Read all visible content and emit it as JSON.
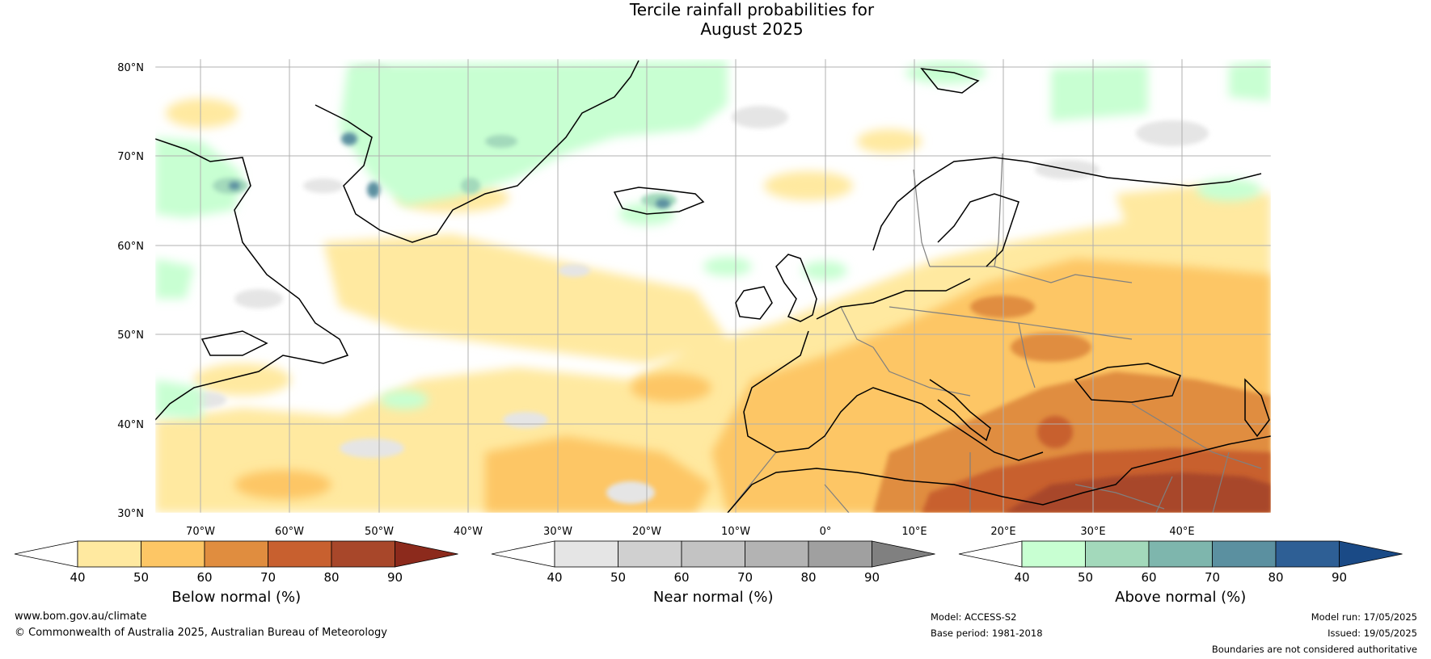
{
  "title": {
    "line1": "Tercile rainfall probabilities for",
    "line2": "August 2025"
  },
  "map": {
    "region": "North Atlantic and Europe",
    "lat_labels": [
      "80°N",
      "70°N",
      "60°N",
      "50°N",
      "40°N",
      "30°N"
    ],
    "lon_labels": [
      "70°W",
      "60°W",
      "50°W",
      "40°W",
      "30°W",
      "20°W",
      "10°W",
      "0°",
      "10°E",
      "20°E",
      "30°E",
      "40°E"
    ],
    "ocean_color": "#ffffff",
    "coastline_color": "#000000",
    "border_color": "#808080",
    "grid_color": "#b0b0b0"
  },
  "colorbars": [
    {
      "label": "Below normal (%)",
      "ticks": [
        "40",
        "50",
        "60",
        "70",
        "80",
        "90"
      ],
      "colors": [
        "#ffffff",
        "#ffe9a0",
        "#fdc665",
        "#e08d3f",
        "#c8602f",
        "#a8472a",
        "#8c2a1c"
      ]
    },
    {
      "label": "Near normal (%)",
      "ticks": [
        "40",
        "50",
        "60",
        "70",
        "80",
        "90"
      ],
      "colors": [
        "#ffffff",
        "#e5e5e5",
        "#d0d0d0",
        "#c3c3c3",
        "#b3b3b3",
        "#a0a0a0",
        "#808080"
      ]
    },
    {
      "label": "Above normal (%)",
      "ticks": [
        "40",
        "50",
        "60",
        "70",
        "80",
        "90"
      ],
      "colors": [
        "#ffffff",
        "#c8ffd2",
        "#a3d9bb",
        "#7eb6ad",
        "#5b90a0",
        "#2e5f95",
        "#1a4a86"
      ]
    }
  ],
  "footer": {
    "url": "www.bom.gov.au/climate",
    "copyright": "© Commonwealth of Australia 2025, Australian Bureau of Meteorology",
    "model": "Model: ACCESS-S2",
    "base_period": "Base period: 1981-2018",
    "model_run": "Model run: 17/05/2025",
    "issued": "Issued: 19/05/2025",
    "disclaimer": "Boundaries are not considered authoritative"
  }
}
